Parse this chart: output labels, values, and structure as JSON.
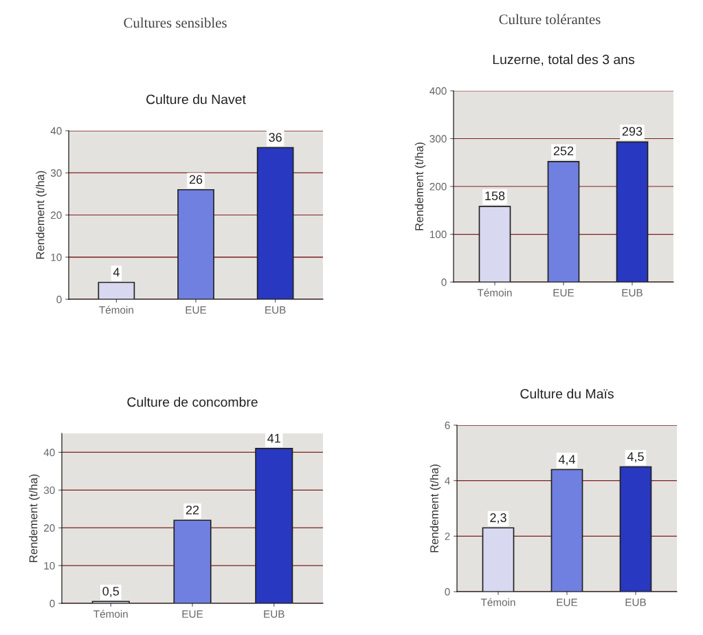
{
  "chart_data": [
    {
      "type": "bar",
      "title": "Culture du Navet",
      "annotations": [
        "Cultures sensibles"
      ],
      "ylabel": "Rendement (t/ha)",
      "categories": [
        "Témoin",
        "EUE",
        "EUB"
      ],
      "values": [
        4,
        26,
        36
      ],
      "colors": [
        "#d8d8f0",
        "#7080e0",
        "#2838c0"
      ],
      "value_labels": [
        "4",
        "26",
        "36"
      ],
      "ylim": [
        0,
        40
      ],
      "yticks": [
        0,
        10,
        20,
        30,
        40
      ],
      "grid": "y"
    },
    {
      "type": "bar",
      "title": "Luzerne, total des 3 ans",
      "annotations": [
        "Culture tolérantes"
      ],
      "ylabel": "Rendement (t/ha)",
      "categories": [
        "Témoin",
        "EUE",
        "EUB"
      ],
      "values": [
        158,
        252,
        293
      ],
      "colors": [
        "#d8d8f0",
        "#7080e0",
        "#2838c0"
      ],
      "value_labels": [
        "158",
        "252",
        "293"
      ],
      "ylim": [
        0,
        400
      ],
      "yticks": [
        0,
        100,
        200,
        300,
        400
      ],
      "grid": "y"
    },
    {
      "type": "bar",
      "title": "Culture de concombre",
      "ylabel": "Rendement (t/ha)",
      "categories": [
        "Témoin",
        "EUE",
        "EUB"
      ],
      "values": [
        0.5,
        22,
        41
      ],
      "colors": [
        "#d8d8f0",
        "#7080e0",
        "#2838c0"
      ],
      "value_labels": [
        "0,5",
        "22",
        "41"
      ],
      "ylim": [
        0,
        45
      ],
      "yticks": [
        0,
        10,
        20,
        30,
        40
      ],
      "grid": "y"
    },
    {
      "type": "bar",
      "title": "Culture du Maïs",
      "ylabel": "Rendement (t/ha)",
      "categories": [
        "Témoin",
        "EUE",
        "EUB"
      ],
      "values": [
        2.3,
        4.4,
        4.5
      ],
      "colors": [
        "#d8d8f0",
        "#7080e0",
        "#2838c0"
      ],
      "value_labels": [
        "2,3",
        "4,4",
        "4,5"
      ],
      "ylim": [
        0,
        6
      ],
      "yticks": [
        0,
        2,
        4,
        6
      ],
      "grid": "y"
    }
  ]
}
